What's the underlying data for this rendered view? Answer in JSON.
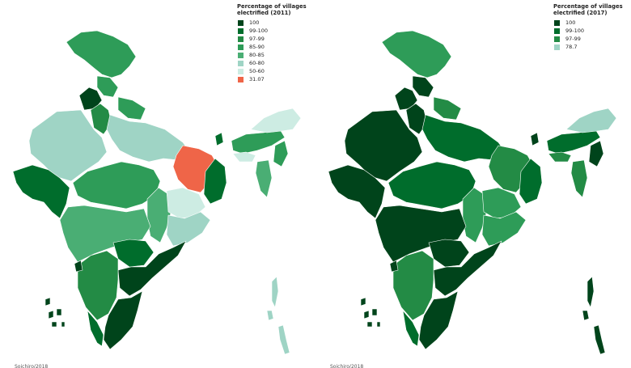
{
  "maps": [
    {
      "legend_title": "Percentage of villages electrified (2011)",
      "legend": [
        {
          "label": "100",
          "color": "#00441b"
        },
        {
          "label": "99-100",
          "color": "#006d2c"
        },
        {
          "label": "97-99",
          "color": "#238b45"
        },
        {
          "label": "85-90",
          "color": "#2e9c58"
        },
        {
          "label": "80-85",
          "color": "#4aae74"
        },
        {
          "label": "60-80",
          "color": "#9fd4c5"
        },
        {
          "label": "50-60",
          "color": "#cdece3"
        },
        {
          "label": "31.07",
          "color": "#ef6548"
        }
      ],
      "credit": "Soichiro/2018"
    },
    {
      "legend_title": "Percentage of villages electrified (2017)",
      "legend": [
        {
          "label": "100",
          "color": "#00441b"
        },
        {
          "label": "99-100",
          "color": "#006d2c"
        },
        {
          "label": "97-99",
          "color": "#238b45"
        },
        {
          "label": "78.7",
          "color": "#9fd4c5"
        }
      ],
      "credit": "Soichiro/2018"
    }
  ]
}
